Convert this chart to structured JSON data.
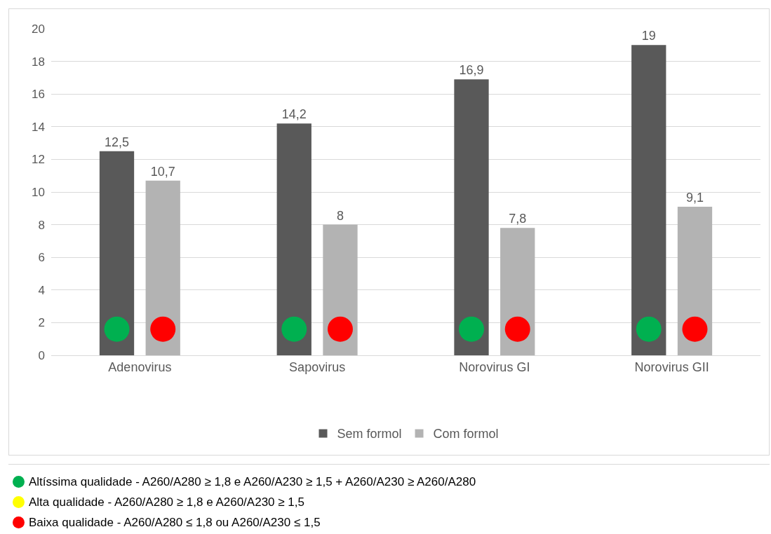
{
  "chart_data": {
    "type": "bar",
    "categories": [
      "Adenovirus",
      "Sapovirus",
      "Norovirus GI",
      "Norovirus GII"
    ],
    "series": [
      {
        "name": "Sem formol",
        "color": "#595959",
        "values": [
          12.5,
          14.2,
          16.9,
          19
        ],
        "value_labels": [
          "12,5",
          "14,2",
          "16,9",
          "19"
        ]
      },
      {
        "name": "Com formol",
        "color": "#b3b3b3",
        "values": [
          10.7,
          8,
          7.8,
          9.1
        ],
        "value_labels": [
          "10,7",
          "8",
          "7,8",
          "9,1"
        ]
      },
      {
        "type": "scatter",
        "colors": [
          "#00b050",
          "#00b050",
          "#00b050",
          "#00b050"
        ],
        "values": [
          1.6,
          1.6,
          1.6,
          1.6
        ]
      },
      {
        "type": "scatter",
        "colors": [
          "#ff0000",
          "#ff0000",
          "#ff0000",
          "#ff0000"
        ],
        "values": [
          1.6,
          1.6,
          1.6,
          1.6
        ]
      }
    ],
    "ylim": [
      0,
      20
    ],
    "yticks": [
      0,
      2,
      4,
      6,
      8,
      10,
      12,
      14,
      16,
      18,
      20
    ],
    "grid": "y",
    "legend": "bottom",
    "marker": "circle",
    "annotations": [
      "Altíssima qualidade - A260/A280 ≥ 1,8 e A260/A230 ≥ 1,5 + A260/A230 ≥ A260/A280",
      "Alta qualidade - A260/A280 ≥ 1,8 e A260/A230 ≥ 1,5",
      "Baixa qualidade - A260/A280 ≤ 1,8 ou A260/A230 ≤ 1,5"
    ]
  }
}
